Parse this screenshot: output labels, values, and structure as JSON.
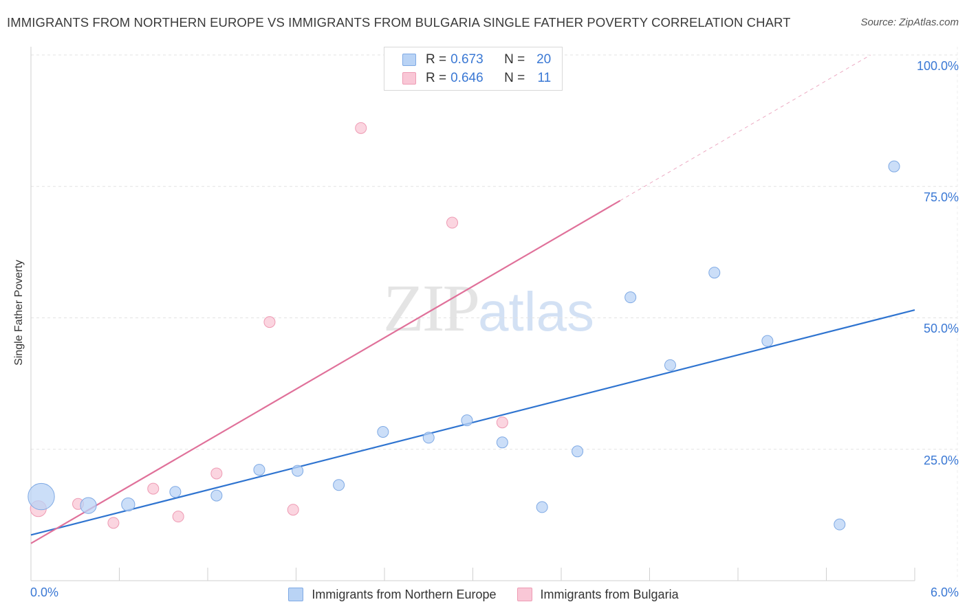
{
  "title": "IMMIGRANTS FROM NORTHERN EUROPE VS IMMIGRANTS FROM BULGARIA SINGLE FATHER POVERTY CORRELATION CHART",
  "source": "Source: ZipAtlas.com",
  "watermark": {
    "zip": "ZIP",
    "atlas": "atlas"
  },
  "colors": {
    "blue_fill": "#b9d3f5",
    "blue_stroke": "#7ea9e4",
    "blue_line": "#2f74d0",
    "pink_fill": "#f9c7d6",
    "pink_stroke": "#ee9ab3",
    "pink_line": "#e0719a",
    "grid": "#e3e3e3",
    "axis_text": "#3a78d4"
  },
  "legend_top": [
    {
      "r_label": "R =",
      "r_value": "0.673",
      "n_label": "N =",
      "n_value": "20"
    },
    {
      "r_label": "R =",
      "r_value": "0.646",
      "n_label": "N =",
      "n_value": "11"
    }
  ],
  "chart_data": {
    "type": "scatter",
    "title": "IMMIGRANTS FROM NORTHERN EUROPE VS IMMIGRANTS FROM BULGARIA SINGLE FATHER POVERTY CORRELATION CHART",
    "xlabel": "",
    "ylabel": "Single Father Poverty",
    "xlim": [
      0.0,
      6.0
    ],
    "ylim": [
      0.0,
      100.0
    ],
    "x_tick_labels": [
      "0.0%",
      "6.0%"
    ],
    "y_tick_labels": [
      "25.0%",
      "50.0%",
      "75.0%",
      "100.0%"
    ],
    "y_ticks": [
      25,
      50,
      75,
      100
    ],
    "grid": true,
    "legend_position": "bottom-center",
    "series": [
      {
        "name": "Immigrants from Northern Europe",
        "color": "blue",
        "R": 0.673,
        "N": 20,
        "points": [
          {
            "x": 0.07,
            "y": 16.0,
            "size": 3
          },
          {
            "x": 0.39,
            "y": 14.3,
            "size": 2
          },
          {
            "x": 0.66,
            "y": 14.5,
            "size": 1.4
          },
          {
            "x": 0.98,
            "y": 16.9,
            "size": 1
          },
          {
            "x": 1.26,
            "y": 16.2,
            "size": 1
          },
          {
            "x": 1.55,
            "y": 21.1,
            "size": 1
          },
          {
            "x": 1.81,
            "y": 20.9,
            "size": 1
          },
          {
            "x": 2.09,
            "y": 18.2,
            "size": 1
          },
          {
            "x": 2.39,
            "y": 28.3,
            "size": 1
          },
          {
            "x": 2.7,
            "y": 27.2,
            "size": 1
          },
          {
            "x": 2.96,
            "y": 30.5,
            "size": 1
          },
          {
            "x": 3.2,
            "y": 26.3,
            "size": 1
          },
          {
            "x": 3.47,
            "y": 14.0,
            "size": 1
          },
          {
            "x": 3.71,
            "y": 24.6,
            "size": 1
          },
          {
            "x": 4.07,
            "y": 53.9,
            "size": 1
          },
          {
            "x": 4.34,
            "y": 41.0,
            "size": 1
          },
          {
            "x": 4.64,
            "y": 58.6,
            "size": 1
          },
          {
            "x": 5.0,
            "y": 45.6,
            "size": 1
          },
          {
            "x": 5.49,
            "y": 10.7,
            "size": 1
          },
          {
            "x": 5.86,
            "y": 78.8,
            "size": 1
          }
        ],
        "trend": {
          "x0": 0.0,
          "y0": 8.7,
          "x1": 6.0,
          "y1": 51.5
        }
      },
      {
        "name": "Immigrants from Bulgaria",
        "color": "pink",
        "R": 0.646,
        "N": 11,
        "points": [
          {
            "x": 0.05,
            "y": 13.7,
            "size": 2
          },
          {
            "x": 0.32,
            "y": 14.6,
            "size": 1
          },
          {
            "x": 0.56,
            "y": 11.0,
            "size": 1
          },
          {
            "x": 0.83,
            "y": 17.5,
            "size": 1
          },
          {
            "x": 1.0,
            "y": 12.2,
            "size": 1
          },
          {
            "x": 1.26,
            "y": 20.4,
            "size": 1
          },
          {
            "x": 1.62,
            "y": 49.2,
            "size": 1
          },
          {
            "x": 1.78,
            "y": 13.5,
            "size": 1
          },
          {
            "x": 2.24,
            "y": 86.1,
            "size": 1
          },
          {
            "x": 2.86,
            "y": 68.1,
            "size": 1
          },
          {
            "x": 3.2,
            "y": 30.1,
            "size": 1
          }
        ],
        "trend": {
          "x0": 0.0,
          "y0": 7.1,
          "x1": 4.0,
          "y1": 72.3,
          "dashed_to_x": 5.7,
          "dashed_to_y": 100.0
        }
      }
    ]
  }
}
